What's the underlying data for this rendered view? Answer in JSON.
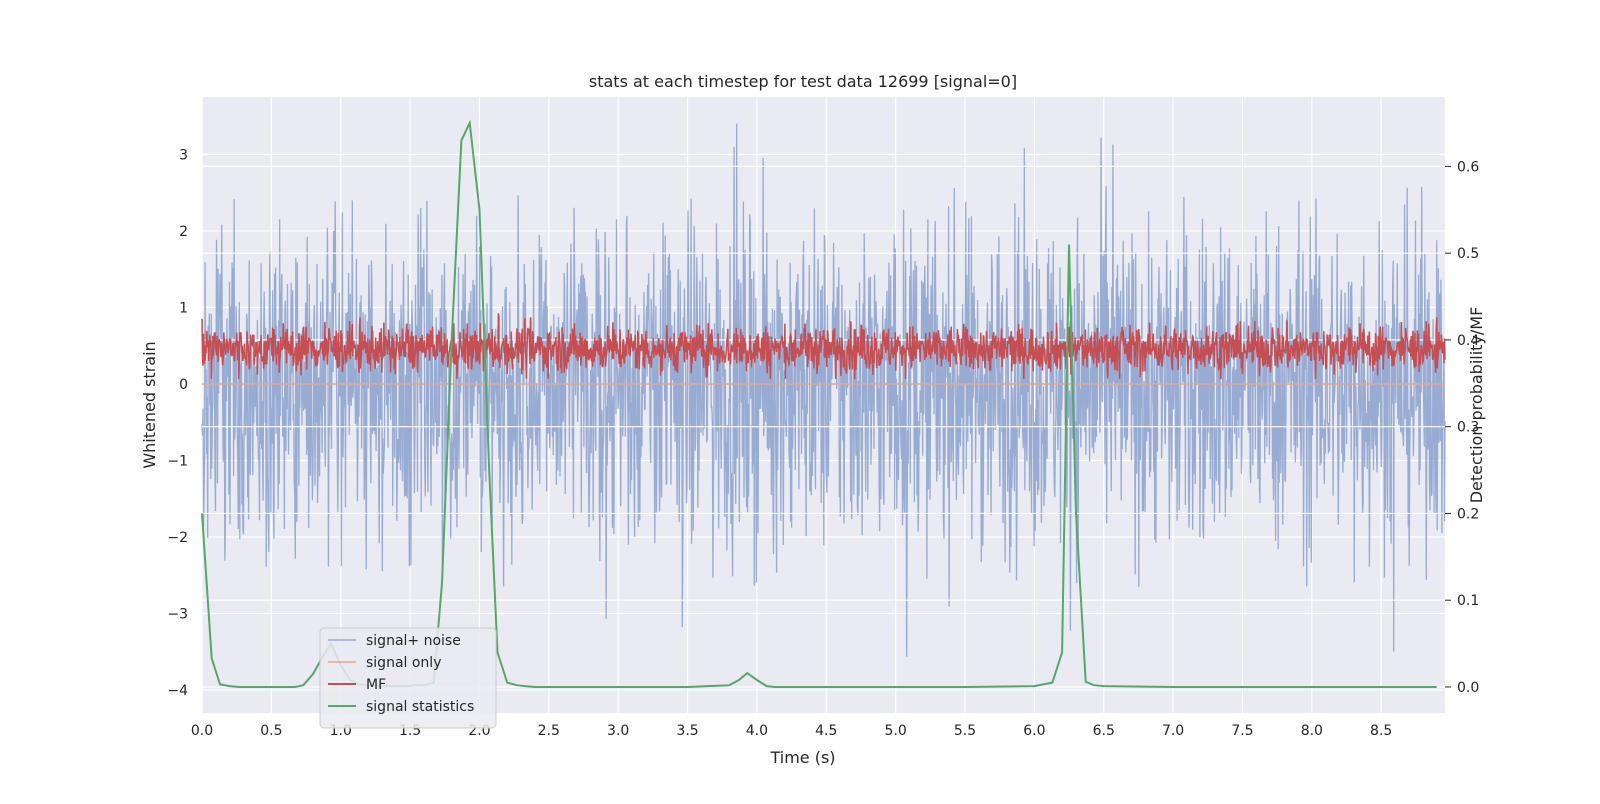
{
  "chart_data": {
    "type": "line",
    "title": "stats at each timestep for test data 12699 [signal=0]",
    "xlabel": "Time (s)",
    "ylabel": "Whitened strain",
    "ylabel_right": "Detection probability/MF",
    "xlim": [
      0.0,
      8.96
    ],
    "ylim": [
      -4.3,
      3.75
    ],
    "ylim_right": [
      -0.03,
      0.68
    ],
    "xticks": [
      0.0,
      0.5,
      1.0,
      1.5,
      2.0,
      2.5,
      3.0,
      3.5,
      4.0,
      4.5,
      5.0,
      5.5,
      6.0,
      6.5,
      7.0,
      7.5,
      8.0,
      8.5
    ],
    "xtick_labels": [
      "0.0",
      "0.5",
      "1.0",
      "1.5",
      "2.0",
      "2.5",
      "3.0",
      "3.5",
      "4.0",
      "4.5",
      "5.0",
      "5.5",
      "6.0",
      "6.5",
      "7.0",
      "7.5",
      "8.0",
      "8.5"
    ],
    "yticks": [
      -4,
      -3,
      -2,
      -1,
      0,
      1,
      2,
      3
    ],
    "ytick_labels": [
      "−4",
      "−3",
      "−2",
      "−1",
      "0",
      "1",
      "2",
      "3"
    ],
    "yticks_right": [
      0.0,
      0.1,
      0.2,
      0.3,
      0.4,
      0.5,
      0.6
    ],
    "ytick_right_labels": [
      "0.0",
      "0.1",
      "0.2",
      "0.3",
      "0.4",
      "0.5",
      "0.6"
    ],
    "grid": true,
    "legend_position": "lower-left",
    "background": "#eaeaf2",
    "series": [
      {
        "name": "signal+ noise",
        "color": "#92a8d1",
        "axis": "left",
        "style": "noise",
        "band": [
          -1.8,
          1.8
        ],
        "extremes": [
          3.1,
          -4.0
        ],
        "description_values_approx": true
      },
      {
        "name": "signal only",
        "color": "#e8a58c",
        "axis": "left",
        "style": "flat",
        "value": 0.0
      },
      {
        "name": "MF",
        "color": "#c44e52",
        "axis": "right",
        "style": "noise",
        "band": [
          0.36,
          0.42
        ]
      },
      {
        "name": "signal statistics",
        "color": "#55a868",
        "axis": "right",
        "style": "line",
        "x": [
          0.0,
          0.07,
          0.13,
          0.2,
          0.27,
          0.33,
          0.4,
          0.47,
          0.53,
          0.6,
          0.67,
          0.73,
          0.8,
          0.87,
          0.93,
          1.0,
          1.07,
          1.13,
          1.2,
          1.27,
          1.33,
          1.4,
          1.47,
          1.53,
          1.6,
          1.67,
          1.73,
          1.8,
          1.87,
          1.93,
          2.0,
          2.07,
          2.13,
          2.2,
          2.27,
          2.33,
          2.4,
          2.5,
          3.0,
          3.5,
          3.8,
          3.87,
          3.93,
          4.0,
          4.07,
          4.13,
          4.5,
          5.0,
          5.5,
          6.0,
          6.13,
          6.2,
          6.25,
          6.3,
          6.37,
          6.43,
          6.5,
          7.0,
          7.5,
          8.0,
          8.5,
          8.9
        ],
        "values": [
          0.2,
          0.033,
          0.003,
          0.001,
          0.0,
          0.0,
          0.0,
          0.0,
          0.0,
          0.0,
          0.0,
          0.002,
          0.015,
          0.035,
          0.05,
          0.025,
          0.008,
          0.003,
          0.002,
          0.001,
          0.001,
          0.001,
          0.001,
          0.002,
          0.002,
          0.005,
          0.12,
          0.4,
          0.63,
          0.65,
          0.55,
          0.25,
          0.04,
          0.005,
          0.002,
          0.001,
          0.0,
          0.0,
          0.0,
          0.0,
          0.002,
          0.008,
          0.016,
          0.008,
          0.001,
          0.0,
          0.0,
          0.0,
          0.0,
          0.001,
          0.005,
          0.04,
          0.51,
          0.2,
          0.006,
          0.002,
          0.001,
          0.0,
          0.0,
          0.0,
          0.0,
          0.0
        ]
      }
    ]
  }
}
